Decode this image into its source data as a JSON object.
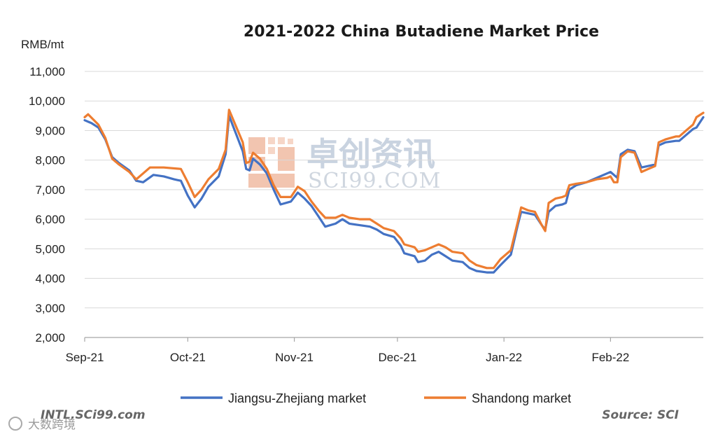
{
  "colors": {
    "series_js": "#4472c4",
    "series_sd": "#ed7d31",
    "grid": "#d9d9d9",
    "axis": "#a6a6a6"
  },
  "footer": {
    "left": "INTL.SCi99.com",
    "right": "Source: SCI"
  },
  "watermark": {
    "cn": "卓创资讯",
    "en": "SCI99.COM",
    "corner": "大数跨境"
  },
  "chart_data": {
    "type": "line",
    "title": "2021-2022  China Butadiene Market Price",
    "ylabel": "RMB/mt",
    "xlabel": "",
    "ylim": [
      2000,
      11000
    ],
    "yticks": [
      2000,
      3000,
      4000,
      5000,
      6000,
      7000,
      8000,
      9000,
      10000,
      11000
    ],
    "ytick_labels": [
      "2,000",
      "3,000",
      "4,000",
      "5,000",
      "6,000",
      "7,000",
      "8,000",
      "9,000",
      "10,000",
      "11,000"
    ],
    "xlim": [
      "2021-09-01",
      "2022-02-28"
    ],
    "xticks": [
      "2021-09-01",
      "2021-10-01",
      "2021-11-01",
      "2021-12-01",
      "2022-01-01",
      "2022-02-01"
    ],
    "xtick_labels": [
      "Sep-21",
      "Oct-21",
      "Nov-21",
      "Dec-21",
      "Jan-22",
      "Feb-22"
    ],
    "grid": "horizontal",
    "legend_position": "bottom",
    "series": [
      {
        "name": "Jiangsu-Zhejiang market",
        "color": "#4472c4",
        "points": [
          [
            "2021-09-01",
            9350
          ],
          [
            "2021-09-03",
            9250
          ],
          [
            "2021-09-05",
            9100
          ],
          [
            "2021-09-07",
            8700
          ],
          [
            "2021-09-09",
            8100
          ],
          [
            "2021-09-11",
            7900
          ],
          [
            "2021-09-14",
            7650
          ],
          [
            "2021-09-16",
            7300
          ],
          [
            "2021-09-18",
            7250
          ],
          [
            "2021-09-21",
            7500
          ],
          [
            "2021-09-24",
            7450
          ],
          [
            "2021-09-27",
            7350
          ],
          [
            "2021-09-29",
            7300
          ],
          [
            "2021-10-01",
            6800
          ],
          [
            "2021-10-03",
            6400
          ],
          [
            "2021-10-05",
            6700
          ],
          [
            "2021-10-07",
            7100
          ],
          [
            "2021-10-10",
            7450
          ],
          [
            "2021-10-12",
            8200
          ],
          [
            "2021-10-13",
            9500
          ],
          [
            "2021-10-15",
            8900
          ],
          [
            "2021-10-17",
            8300
          ],
          [
            "2021-10-18",
            7700
          ],
          [
            "2021-10-19",
            7650
          ],
          [
            "2021-10-20",
            8050
          ],
          [
            "2021-10-22",
            7850
          ],
          [
            "2021-10-24",
            7550
          ],
          [
            "2021-10-26",
            7000
          ],
          [
            "2021-10-28",
            6500
          ],
          [
            "2021-10-31",
            6600
          ],
          [
            "2021-11-02",
            6900
          ],
          [
            "2021-11-04",
            6700
          ],
          [
            "2021-11-06",
            6450
          ],
          [
            "2021-11-08",
            6100
          ],
          [
            "2021-11-10",
            5750
          ],
          [
            "2021-11-13",
            5850
          ],
          [
            "2021-11-15",
            6000
          ],
          [
            "2021-11-17",
            5850
          ],
          [
            "2021-11-20",
            5800
          ],
          [
            "2021-11-23",
            5750
          ],
          [
            "2021-11-25",
            5650
          ],
          [
            "2021-11-27",
            5500
          ],
          [
            "2021-11-30",
            5400
          ],
          [
            "2021-12-02",
            5100
          ],
          [
            "2021-12-03",
            4850
          ],
          [
            "2021-12-06",
            4750
          ],
          [
            "2021-12-07",
            4550
          ],
          [
            "2021-12-09",
            4600
          ],
          [
            "2021-12-11",
            4800
          ],
          [
            "2021-12-13",
            4900
          ],
          [
            "2021-12-15",
            4750
          ],
          [
            "2021-12-17",
            4600
          ],
          [
            "2021-12-20",
            4550
          ],
          [
            "2021-12-22",
            4350
          ],
          [
            "2021-12-24",
            4250
          ],
          [
            "2021-12-27",
            4200
          ],
          [
            "2021-12-29",
            4200
          ],
          [
            "2021-12-31",
            4450
          ],
          [
            "2022-01-03",
            4800
          ],
          [
            "2022-01-05",
            5800
          ],
          [
            "2022-01-06",
            6250
          ],
          [
            "2022-01-08",
            6200
          ],
          [
            "2022-01-10",
            6150
          ],
          [
            "2022-01-12",
            5800
          ],
          [
            "2022-01-13",
            5650
          ],
          [
            "2022-01-14",
            6250
          ],
          [
            "2022-01-16",
            6450
          ],
          [
            "2022-01-18",
            6500
          ],
          [
            "2022-01-19",
            6550
          ],
          [
            "2022-01-20",
            7000
          ],
          [
            "2022-01-22",
            7150
          ],
          [
            "2022-01-25",
            7250
          ],
          [
            "2022-01-28",
            7400
          ],
          [
            "2022-01-31",
            7550
          ],
          [
            "2022-02-01",
            7600
          ],
          [
            "2022-02-02",
            7500
          ],
          [
            "2022-02-03",
            7400
          ],
          [
            "2022-02-04",
            8200
          ],
          [
            "2022-02-06",
            8350
          ],
          [
            "2022-02-08",
            8300
          ],
          [
            "2022-02-10",
            7750
          ],
          [
            "2022-02-12",
            7800
          ],
          [
            "2022-02-14",
            7850
          ],
          [
            "2022-02-15",
            8500
          ],
          [
            "2022-02-17",
            8600
          ],
          [
            "2022-02-20",
            8650
          ],
          [
            "2022-02-21",
            8650
          ],
          [
            "2022-02-23",
            8850
          ],
          [
            "2022-02-25",
            9050
          ],
          [
            "2022-02-26",
            9100
          ],
          [
            "2022-02-28",
            9450
          ]
        ]
      },
      {
        "name": "Shandong market",
        "color": "#ed7d31",
        "points": [
          [
            "2021-09-01",
            9450
          ],
          [
            "2021-09-02",
            9550
          ],
          [
            "2021-09-05",
            9200
          ],
          [
            "2021-09-07",
            8750
          ],
          [
            "2021-09-09",
            8050
          ],
          [
            "2021-09-11",
            7850
          ],
          [
            "2021-09-14",
            7600
          ],
          [
            "2021-09-16",
            7350
          ],
          [
            "2021-09-18",
            7550
          ],
          [
            "2021-09-20",
            7750
          ],
          [
            "2021-09-24",
            7750
          ],
          [
            "2021-09-29",
            7700
          ],
          [
            "2021-10-01",
            7250
          ],
          [
            "2021-10-03",
            6750
          ],
          [
            "2021-10-05",
            7000
          ],
          [
            "2021-10-07",
            7350
          ],
          [
            "2021-10-10",
            7700
          ],
          [
            "2021-10-12",
            8350
          ],
          [
            "2021-10-13",
            9700
          ],
          [
            "2021-10-15",
            9150
          ],
          [
            "2021-10-17",
            8600
          ],
          [
            "2021-10-18",
            7900
          ],
          [
            "2021-10-19",
            7950
          ],
          [
            "2021-10-20",
            8250
          ],
          [
            "2021-10-22",
            8050
          ],
          [
            "2021-10-24",
            7700
          ],
          [
            "2021-10-26",
            7150
          ],
          [
            "2021-10-28",
            6750
          ],
          [
            "2021-10-31",
            6750
          ],
          [
            "2021-11-02",
            7100
          ],
          [
            "2021-11-04",
            6950
          ],
          [
            "2021-11-06",
            6600
          ],
          [
            "2021-11-08",
            6300
          ],
          [
            "2021-11-10",
            6050
          ],
          [
            "2021-11-13",
            6050
          ],
          [
            "2021-11-15",
            6150
          ],
          [
            "2021-11-17",
            6050
          ],
          [
            "2021-11-20",
            6000
          ],
          [
            "2021-11-23",
            6000
          ],
          [
            "2021-11-25",
            5850
          ],
          [
            "2021-11-27",
            5700
          ],
          [
            "2021-11-30",
            5600
          ],
          [
            "2021-12-02",
            5350
          ],
          [
            "2021-12-03",
            5150
          ],
          [
            "2021-12-06",
            5050
          ],
          [
            "2021-12-07",
            4900
          ],
          [
            "2021-12-09",
            4950
          ],
          [
            "2021-12-11",
            5050
          ],
          [
            "2021-12-13",
            5150
          ],
          [
            "2021-12-15",
            5050
          ],
          [
            "2021-12-17",
            4900
          ],
          [
            "2021-12-20",
            4850
          ],
          [
            "2021-12-22",
            4600
          ],
          [
            "2021-12-24",
            4450
          ],
          [
            "2021-12-27",
            4350
          ],
          [
            "2021-12-29",
            4350
          ],
          [
            "2021-12-31",
            4650
          ],
          [
            "2022-01-03",
            4950
          ],
          [
            "2022-01-05",
            5900
          ],
          [
            "2022-01-06",
            6400
          ],
          [
            "2022-01-08",
            6300
          ],
          [
            "2022-01-10",
            6250
          ],
          [
            "2022-01-12",
            5800
          ],
          [
            "2022-01-13",
            5600
          ],
          [
            "2022-01-14",
            6550
          ],
          [
            "2022-01-16",
            6700
          ],
          [
            "2022-01-18",
            6750
          ],
          [
            "2022-01-19",
            6800
          ],
          [
            "2022-01-20",
            7150
          ],
          [
            "2022-01-22",
            7200
          ],
          [
            "2022-01-25",
            7250
          ],
          [
            "2022-01-28",
            7350
          ],
          [
            "2022-01-31",
            7400
          ],
          [
            "2022-02-01",
            7450
          ],
          [
            "2022-02-02",
            7250
          ],
          [
            "2022-02-03",
            7250
          ],
          [
            "2022-02-04",
            8100
          ],
          [
            "2022-02-06",
            8300
          ],
          [
            "2022-02-08",
            8250
          ],
          [
            "2022-02-10",
            7600
          ],
          [
            "2022-02-12",
            7700
          ],
          [
            "2022-02-14",
            7800
          ],
          [
            "2022-02-15",
            8600
          ],
          [
            "2022-02-17",
            8700
          ],
          [
            "2022-02-20",
            8800
          ],
          [
            "2022-02-21",
            8800
          ],
          [
            "2022-02-23",
            9000
          ],
          [
            "2022-02-25",
            9200
          ],
          [
            "2022-02-26",
            9450
          ],
          [
            "2022-02-28",
            9600
          ]
        ]
      }
    ]
  }
}
